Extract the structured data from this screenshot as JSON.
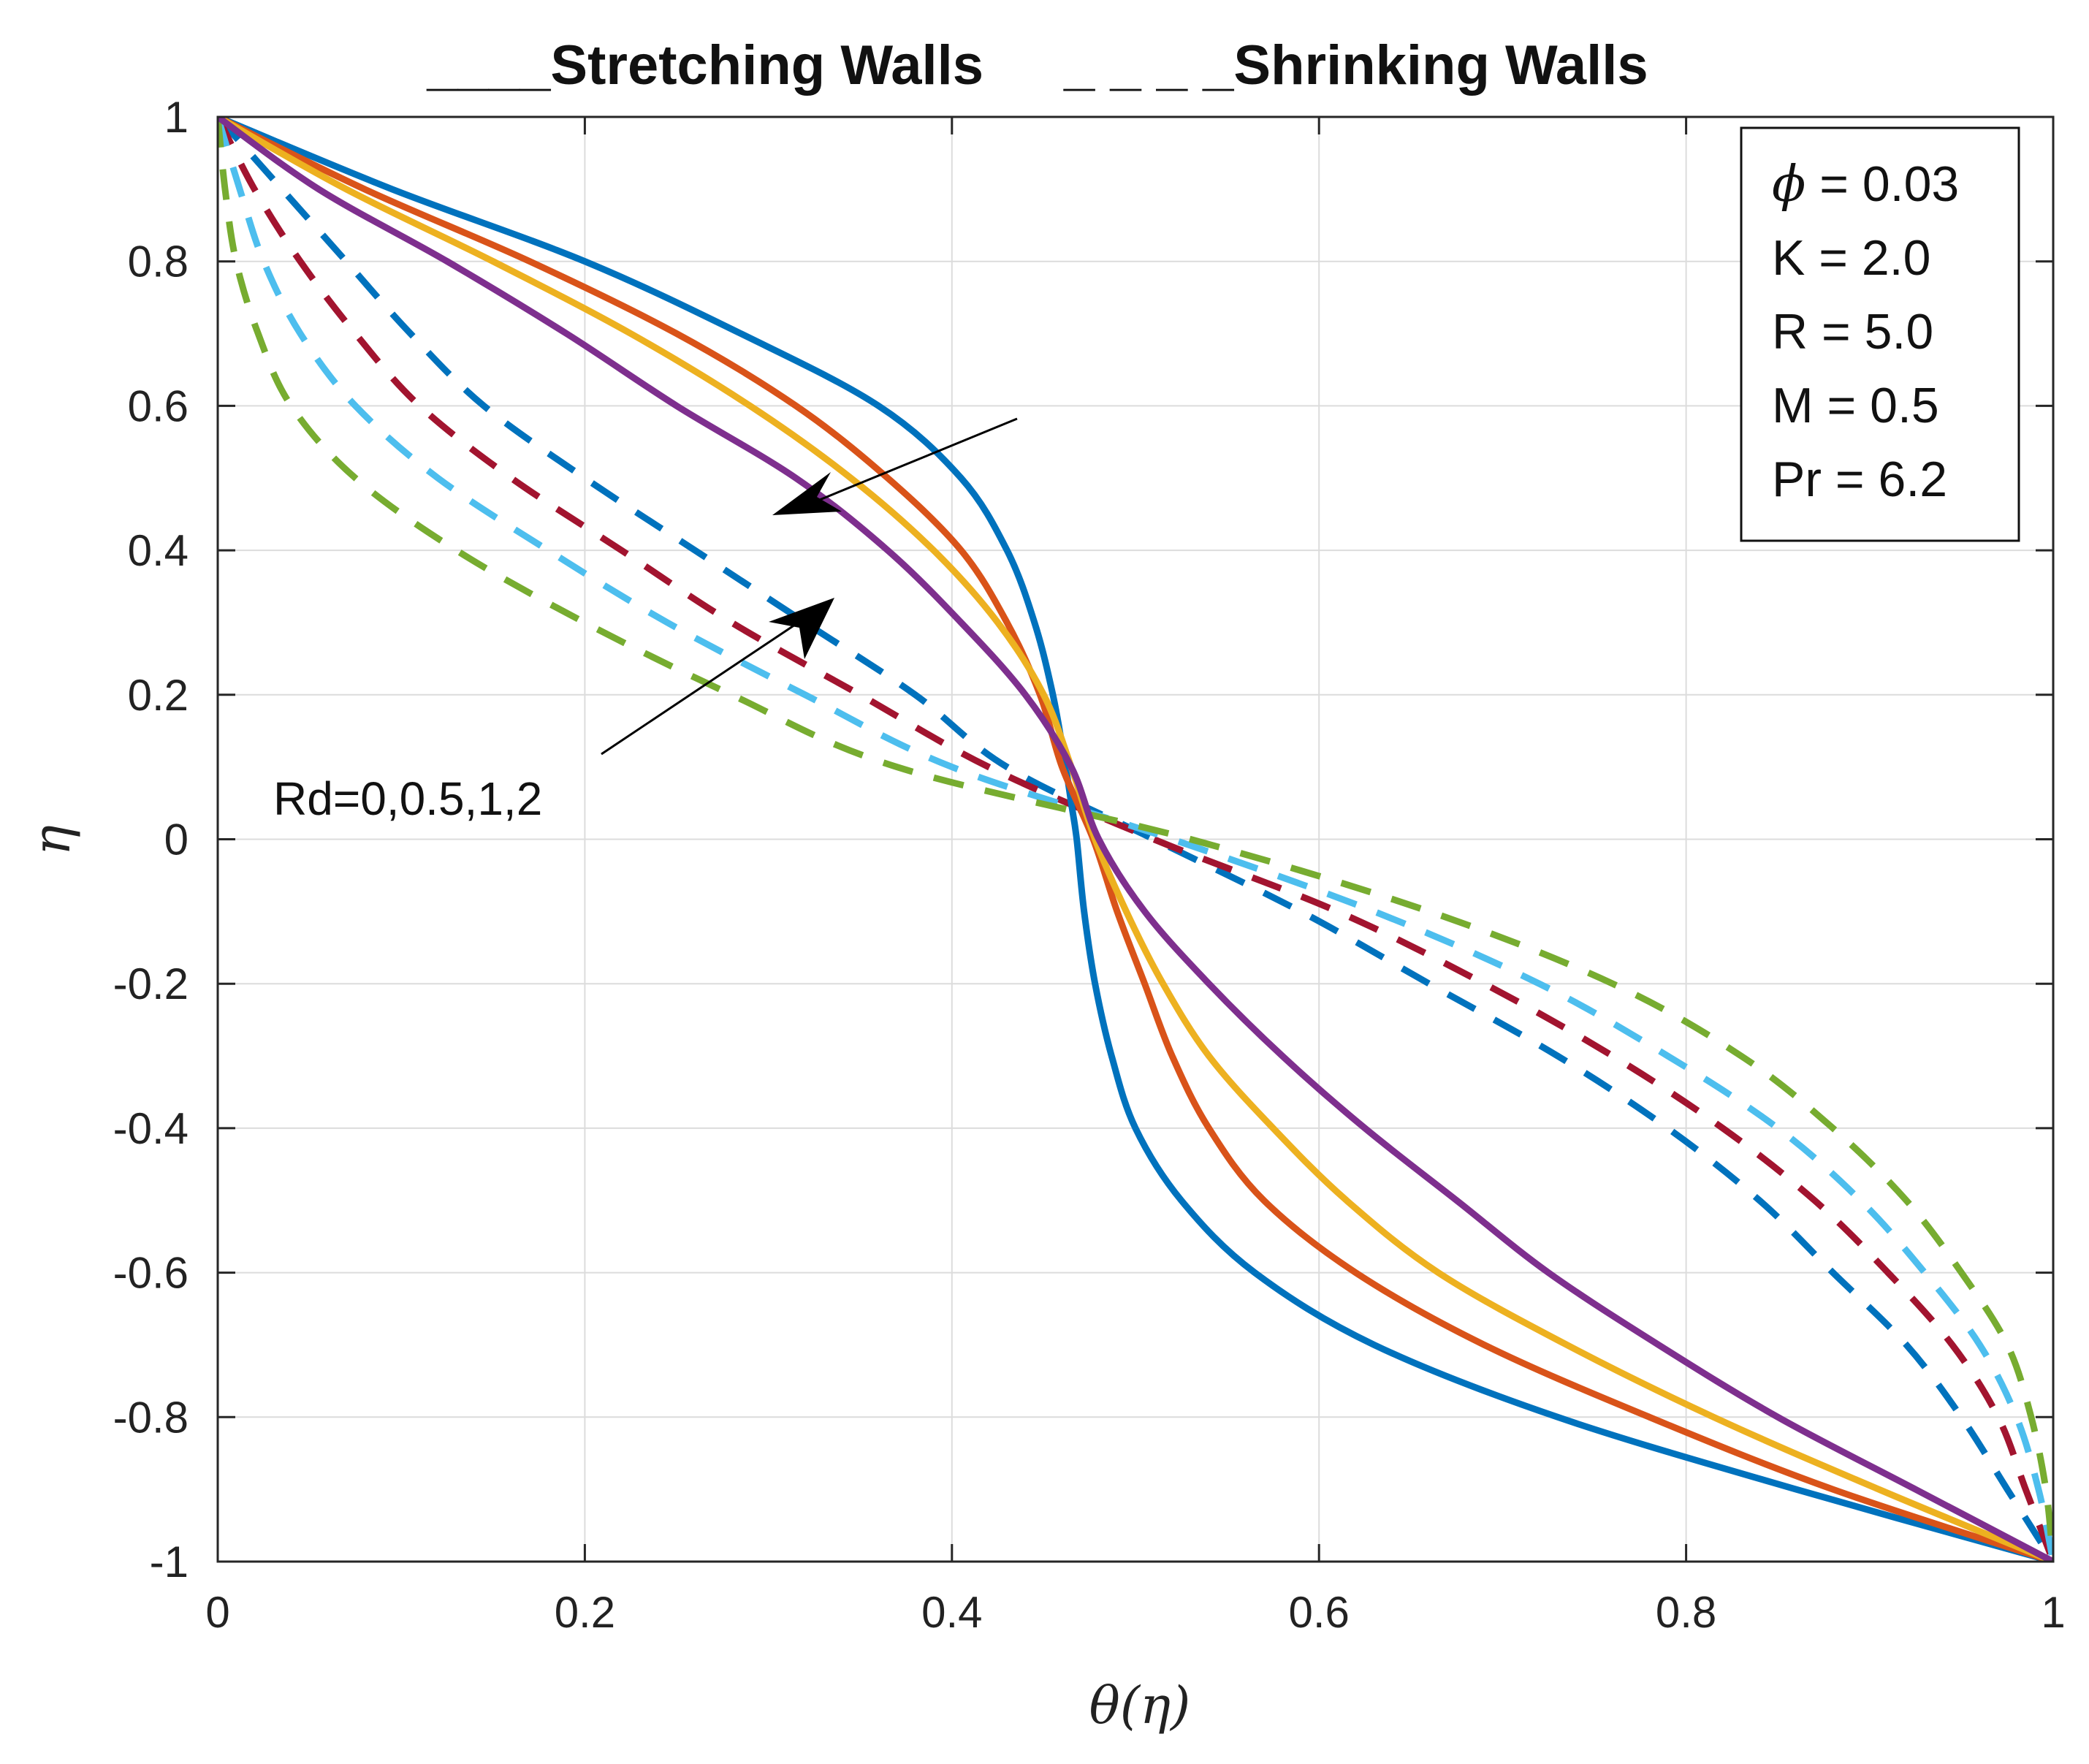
{
  "chart_data": {
    "type": "line",
    "title_segments": [
      {
        "marker": "____",
        "label": "Stretching Walls"
      },
      {
        "marker": "_ _ _ _",
        "label": "Shrinking Walls"
      }
    ],
    "xlabel": "θ(η)",
    "ylabel": "η",
    "xlim": [
      0,
      1
    ],
    "ylim": [
      -1,
      1
    ],
    "xticks": [
      0,
      0.2,
      0.4,
      0.6,
      0.8,
      1
    ],
    "xtick_labels": [
      "0",
      "0.2",
      "0.4",
      "0.6",
      "0.8",
      "1"
    ],
    "yticks": [
      1,
      0.8,
      0.6,
      0.4,
      0.2,
      0,
      -0.2,
      -0.4,
      -0.6,
      -0.8,
      -1
    ],
    "ytick_labels": [
      "1",
      "0.8",
      "0.6",
      "0.4",
      "0.2",
      "0",
      "-0.2",
      "-0.4",
      "-0.6",
      "-0.8",
      "-1"
    ],
    "grid": true,
    "legend_position": "top-right",
    "parameters": [
      {
        "symbol": "ϕ",
        "text": " = 0.03"
      },
      {
        "symbol": "",
        "text": "K = 2.0"
      },
      {
        "symbol": "",
        "text": "R = 5.0"
      },
      {
        "symbol": "",
        "text": "M = 0.5"
      },
      {
        "symbol": "",
        "text": "Pr = 6.2"
      }
    ],
    "annotation": "Rd=0,0.5,1,2",
    "series": [
      {
        "name": "Stretching Walls, Rd=0",
        "group": "stretching",
        "style": "solid",
        "color": "#0072BD",
        "y": [
          1,
          0.9,
          0.8,
          0.7,
          0.6,
          0.5,
          0.4,
          0.3,
          0.2,
          0.1,
          0.05,
          0,
          -0.1,
          -0.2,
          -0.3,
          -0.4,
          -0.5,
          -0.6,
          -0.7,
          -0.8,
          -0.9,
          -1
        ],
        "x": [
          0,
          0.095,
          0.2,
          0.285,
          0.36,
          0.405,
          0.43,
          0.445,
          0.455,
          0.462,
          0.465,
          0.468,
          0.472,
          0.478,
          0.487,
          0.5,
          0.525,
          0.565,
          0.63,
          0.73,
          0.86,
          1
        ]
      },
      {
        "name": "Stretching Walls, Rd=0.5",
        "group": "stretching",
        "style": "solid",
        "color": "#D95319",
        "y": [
          1,
          0.9,
          0.8,
          0.7,
          0.6,
          0.5,
          0.4,
          0.3,
          0.2,
          0.1,
          0,
          -0.1,
          -0.2,
          -0.3,
          -0.4,
          -0.5,
          -0.6,
          -0.7,
          -0.8,
          -0.9,
          -1
        ],
        "x": [
          0,
          0.08,
          0.17,
          0.25,
          0.315,
          0.365,
          0.405,
          0.43,
          0.448,
          0.46,
          0.477,
          0.49,
          0.505,
          0.52,
          0.54,
          0.57,
          0.62,
          0.69,
          0.78,
          0.88,
          1
        ]
      },
      {
        "name": "Stretching Walls, Rd=1",
        "group": "stretching",
        "style": "solid",
        "color": "#EDB120",
        "y": [
          1,
          0.9,
          0.8,
          0.7,
          0.6,
          0.5,
          0.4,
          0.3,
          0.2,
          0.1,
          0,
          -0.1,
          -0.2,
          -0.3,
          -0.4,
          -0.5,
          -0.6,
          -0.7,
          -0.8,
          -0.9,
          -1
        ],
        "x": [
          0,
          0.07,
          0.15,
          0.225,
          0.29,
          0.345,
          0.39,
          0.425,
          0.45,
          0.465,
          0.478,
          0.495,
          0.515,
          0.54,
          0.575,
          0.615,
          0.665,
          0.735,
          0.815,
          0.905,
          1
        ]
      },
      {
        "name": "Stretching Walls, Rd=2",
        "group": "stretching",
        "style": "solid",
        "color": "#7E2F8E",
        "y": [
          1,
          0.9,
          0.8,
          0.7,
          0.6,
          0.5,
          0.4,
          0.3,
          0.2,
          0.1,
          0,
          -0.1,
          -0.2,
          -0.3,
          -0.4,
          -0.5,
          -0.6,
          -0.7,
          -0.8,
          -0.9,
          -1
        ],
        "x": [
          0,
          0.055,
          0.125,
          0.19,
          0.25,
          0.315,
          0.365,
          0.405,
          0.44,
          0.465,
          0.48,
          0.505,
          0.54,
          0.58,
          0.625,
          0.675,
          0.725,
          0.785,
          0.85,
          0.925,
          1
        ]
      },
      {
        "name": "Shrinking Walls, Rd=0",
        "group": "shrinking",
        "style": "dashed",
        "color": "#0072BD",
        "y": [
          1,
          0.9,
          0.8,
          0.7,
          0.6,
          0.5,
          0.4,
          0.3,
          0.2,
          0.1,
          0,
          -0.1,
          -0.2,
          -0.3,
          -0.4,
          -0.5,
          -0.6,
          -0.7,
          -0.8,
          -0.9,
          -1
        ],
        "x": [
          0,
          0.035,
          0.07,
          0.105,
          0.145,
          0.2,
          0.26,
          0.32,
          0.38,
          0.43,
          0.51,
          0.59,
          0.66,
          0.73,
          0.79,
          0.84,
          0.88,
          0.92,
          0.95,
          0.975,
          1
        ]
      },
      {
        "name": "Shrinking Walls, Rd=0.5",
        "group": "shrinking",
        "style": "dashed",
        "color": "#A2142F",
        "y": [
          1,
          0.9,
          0.8,
          0.7,
          0.6,
          0.5,
          0.4,
          0.3,
          0.2,
          0.1,
          0,
          -0.1,
          -0.2,
          -0.3,
          -0.4,
          -0.5,
          -0.6,
          -0.7,
          -0.8,
          -0.9,
          -1
        ],
        "x": [
          0,
          0.02,
          0.045,
          0.075,
          0.11,
          0.16,
          0.22,
          0.28,
          0.35,
          0.42,
          0.51,
          0.61,
          0.69,
          0.76,
          0.82,
          0.87,
          0.91,
          0.945,
          0.97,
          0.985,
          1
        ]
      },
      {
        "name": "Shrinking Walls, Rd=1",
        "group": "shrinking",
        "style": "dashed",
        "color": "#4DBEEE",
        "y": [
          1,
          0.9,
          0.8,
          0.7,
          0.6,
          0.5,
          0.4,
          0.3,
          0.2,
          0.1,
          0,
          -0.1,
          -0.2,
          -0.3,
          -0.4,
          -0.5,
          -0.6,
          -0.7,
          -0.8,
          -0.9,
          -1
        ],
        "x": [
          0,
          0.012,
          0.025,
          0.045,
          0.075,
          0.12,
          0.18,
          0.245,
          0.32,
          0.4,
          0.52,
          0.63,
          0.72,
          0.79,
          0.85,
          0.895,
          0.93,
          0.96,
          0.98,
          0.992,
          1
        ]
      },
      {
        "name": "Shrinking Walls, Rd=2",
        "group": "shrinking",
        "style": "dashed",
        "color": "#77AC30",
        "y": [
          1,
          0.9,
          0.8,
          0.7,
          0.6,
          0.5,
          0.4,
          0.3,
          0.2,
          0.1,
          0,
          -0.1,
          -0.2,
          -0.3,
          -0.4,
          -0.5,
          -0.6,
          -0.7,
          -0.8,
          -0.9,
          -1
        ],
        "x": [
          0,
          0.004,
          0.01,
          0.022,
          0.04,
          0.075,
          0.13,
          0.2,
          0.28,
          0.37,
          0.53,
          0.66,
          0.76,
          0.83,
          0.88,
          0.92,
          0.95,
          0.975,
          0.988,
          0.996,
          1
        ]
      }
    ]
  }
}
